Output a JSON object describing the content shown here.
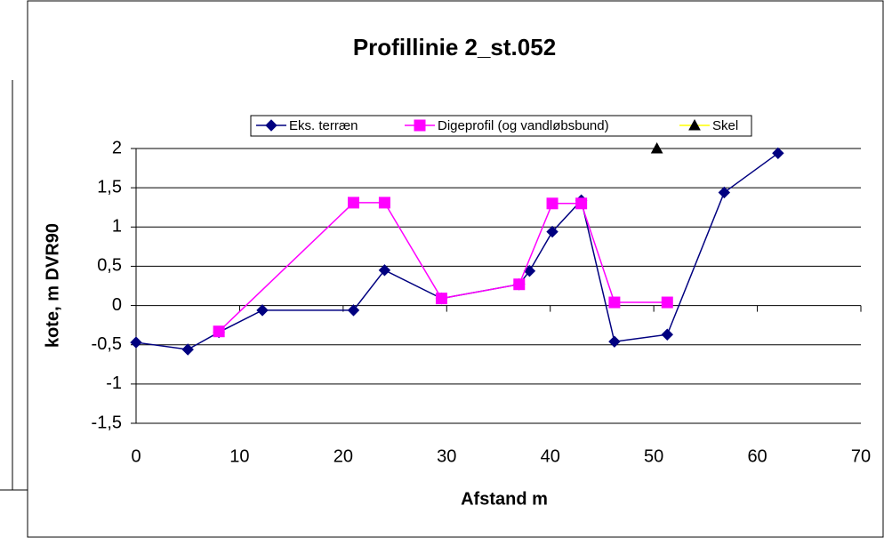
{
  "chart_data": {
    "type": "line",
    "title": "Profillinie 2_st.052",
    "xlabel": "Afstand m",
    "ylabel": "kote, m DVR90",
    "xlim": [
      0,
      70
    ],
    "xticks": [
      0,
      10,
      20,
      30,
      40,
      50,
      60,
      70
    ],
    "ylim": [
      -1.5,
      2
    ],
    "yticks": [
      {
        "value": 2,
        "label": "2"
      },
      {
        "value": 1.5,
        "label": "1,5"
      },
      {
        "value": 1,
        "label": "1"
      },
      {
        "value": 0.5,
        "label": "0,5"
      },
      {
        "value": 0,
        "label": "0"
      },
      {
        "value": -0.5,
        "label": "-0,5"
      },
      {
        "value": -1,
        "label": "-1"
      },
      {
        "value": -1.5,
        "label": "-1,5"
      }
    ],
    "grid": true,
    "series": [
      {
        "name": "Eks. terræn",
        "color": "#000080",
        "marker": "diamond",
        "marker_color": "#000080",
        "x": [
          0,
          5,
          8,
          12.2,
          21,
          24,
          29.5,
          37,
          38,
          40.2,
          43,
          46.2,
          51.3,
          56.8,
          62
        ],
        "values": [
          -0.47,
          -0.56,
          -0.34,
          -0.06,
          -0.06,
          0.45,
          0.09,
          0.27,
          0.44,
          0.94,
          1.34,
          -0.46,
          -0.37,
          1.44,
          1.94
        ]
      },
      {
        "name": "Digeprofil (og vandløbsbund)",
        "color": "#ff00ff",
        "marker": "square",
        "marker_color": "#ff00ff",
        "x": [
          8,
          21,
          24,
          29.5,
          37,
          40.2,
          43,
          46.2,
          51.3
        ],
        "values": [
          -0.33,
          1.31,
          1.31,
          0.09,
          0.27,
          1.3,
          1.3,
          0.04,
          0.04
        ]
      },
      {
        "name": "Skel",
        "color": "#ffff00",
        "marker": "triangle",
        "marker_color": "#000000",
        "x": [
          50.3
        ],
        "values": [
          2.0
        ]
      }
    ]
  }
}
